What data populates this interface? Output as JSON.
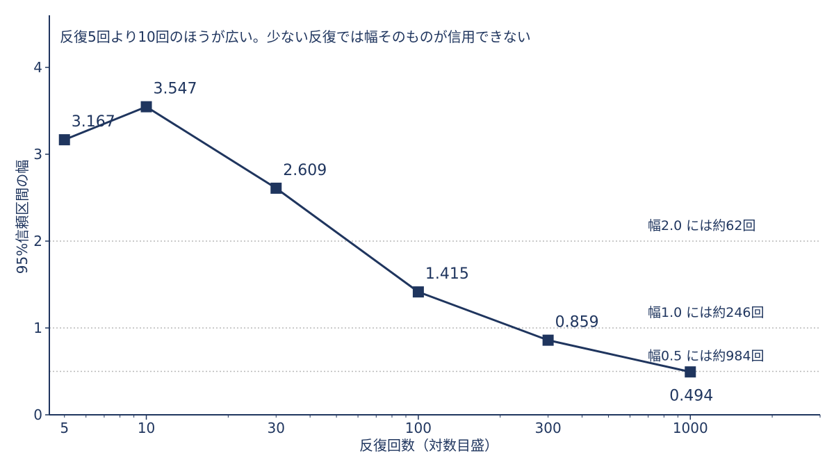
{
  "chart_data": {
    "type": "line",
    "title": "反復5回より10回のほうが広い。少ない反復では幅そのものが信用できない",
    "xlabel": "反復回数（対数目盛）",
    "ylabel": "95%信頼区間の幅",
    "x_scale": "log",
    "xlim": [
      4.4,
      3000
    ],
    "ylim": [
      0,
      4.6
    ],
    "x_ticks": [
      5,
      10,
      30,
      100,
      300,
      1000
    ],
    "y_ticks": [
      0,
      1,
      2,
      3,
      4
    ],
    "grid": false,
    "series": [
      {
        "x": [
          5,
          10,
          30,
          100,
          300,
          1000
        ],
        "values": [
          3.167,
          3.547,
          2.609,
          1.415,
          0.859,
          0.494
        ],
        "labels": [
          "3.167",
          "3.547",
          "2.609",
          "1.415",
          "0.859",
          "0.494"
        ],
        "marker": "square",
        "color": "#1f355e"
      }
    ],
    "reference_lines": [
      {
        "y": 2.0,
        "label": "幅2.0 には約62回"
      },
      {
        "y": 1.0,
        "label": "幅1.0 には約246回"
      },
      {
        "y": 0.5,
        "label": "幅0.5 には約984回"
      }
    ]
  },
  "colors": {
    "series": "#1f355e",
    "axis": "#1f355e",
    "reference": "#b8b8b8"
  }
}
